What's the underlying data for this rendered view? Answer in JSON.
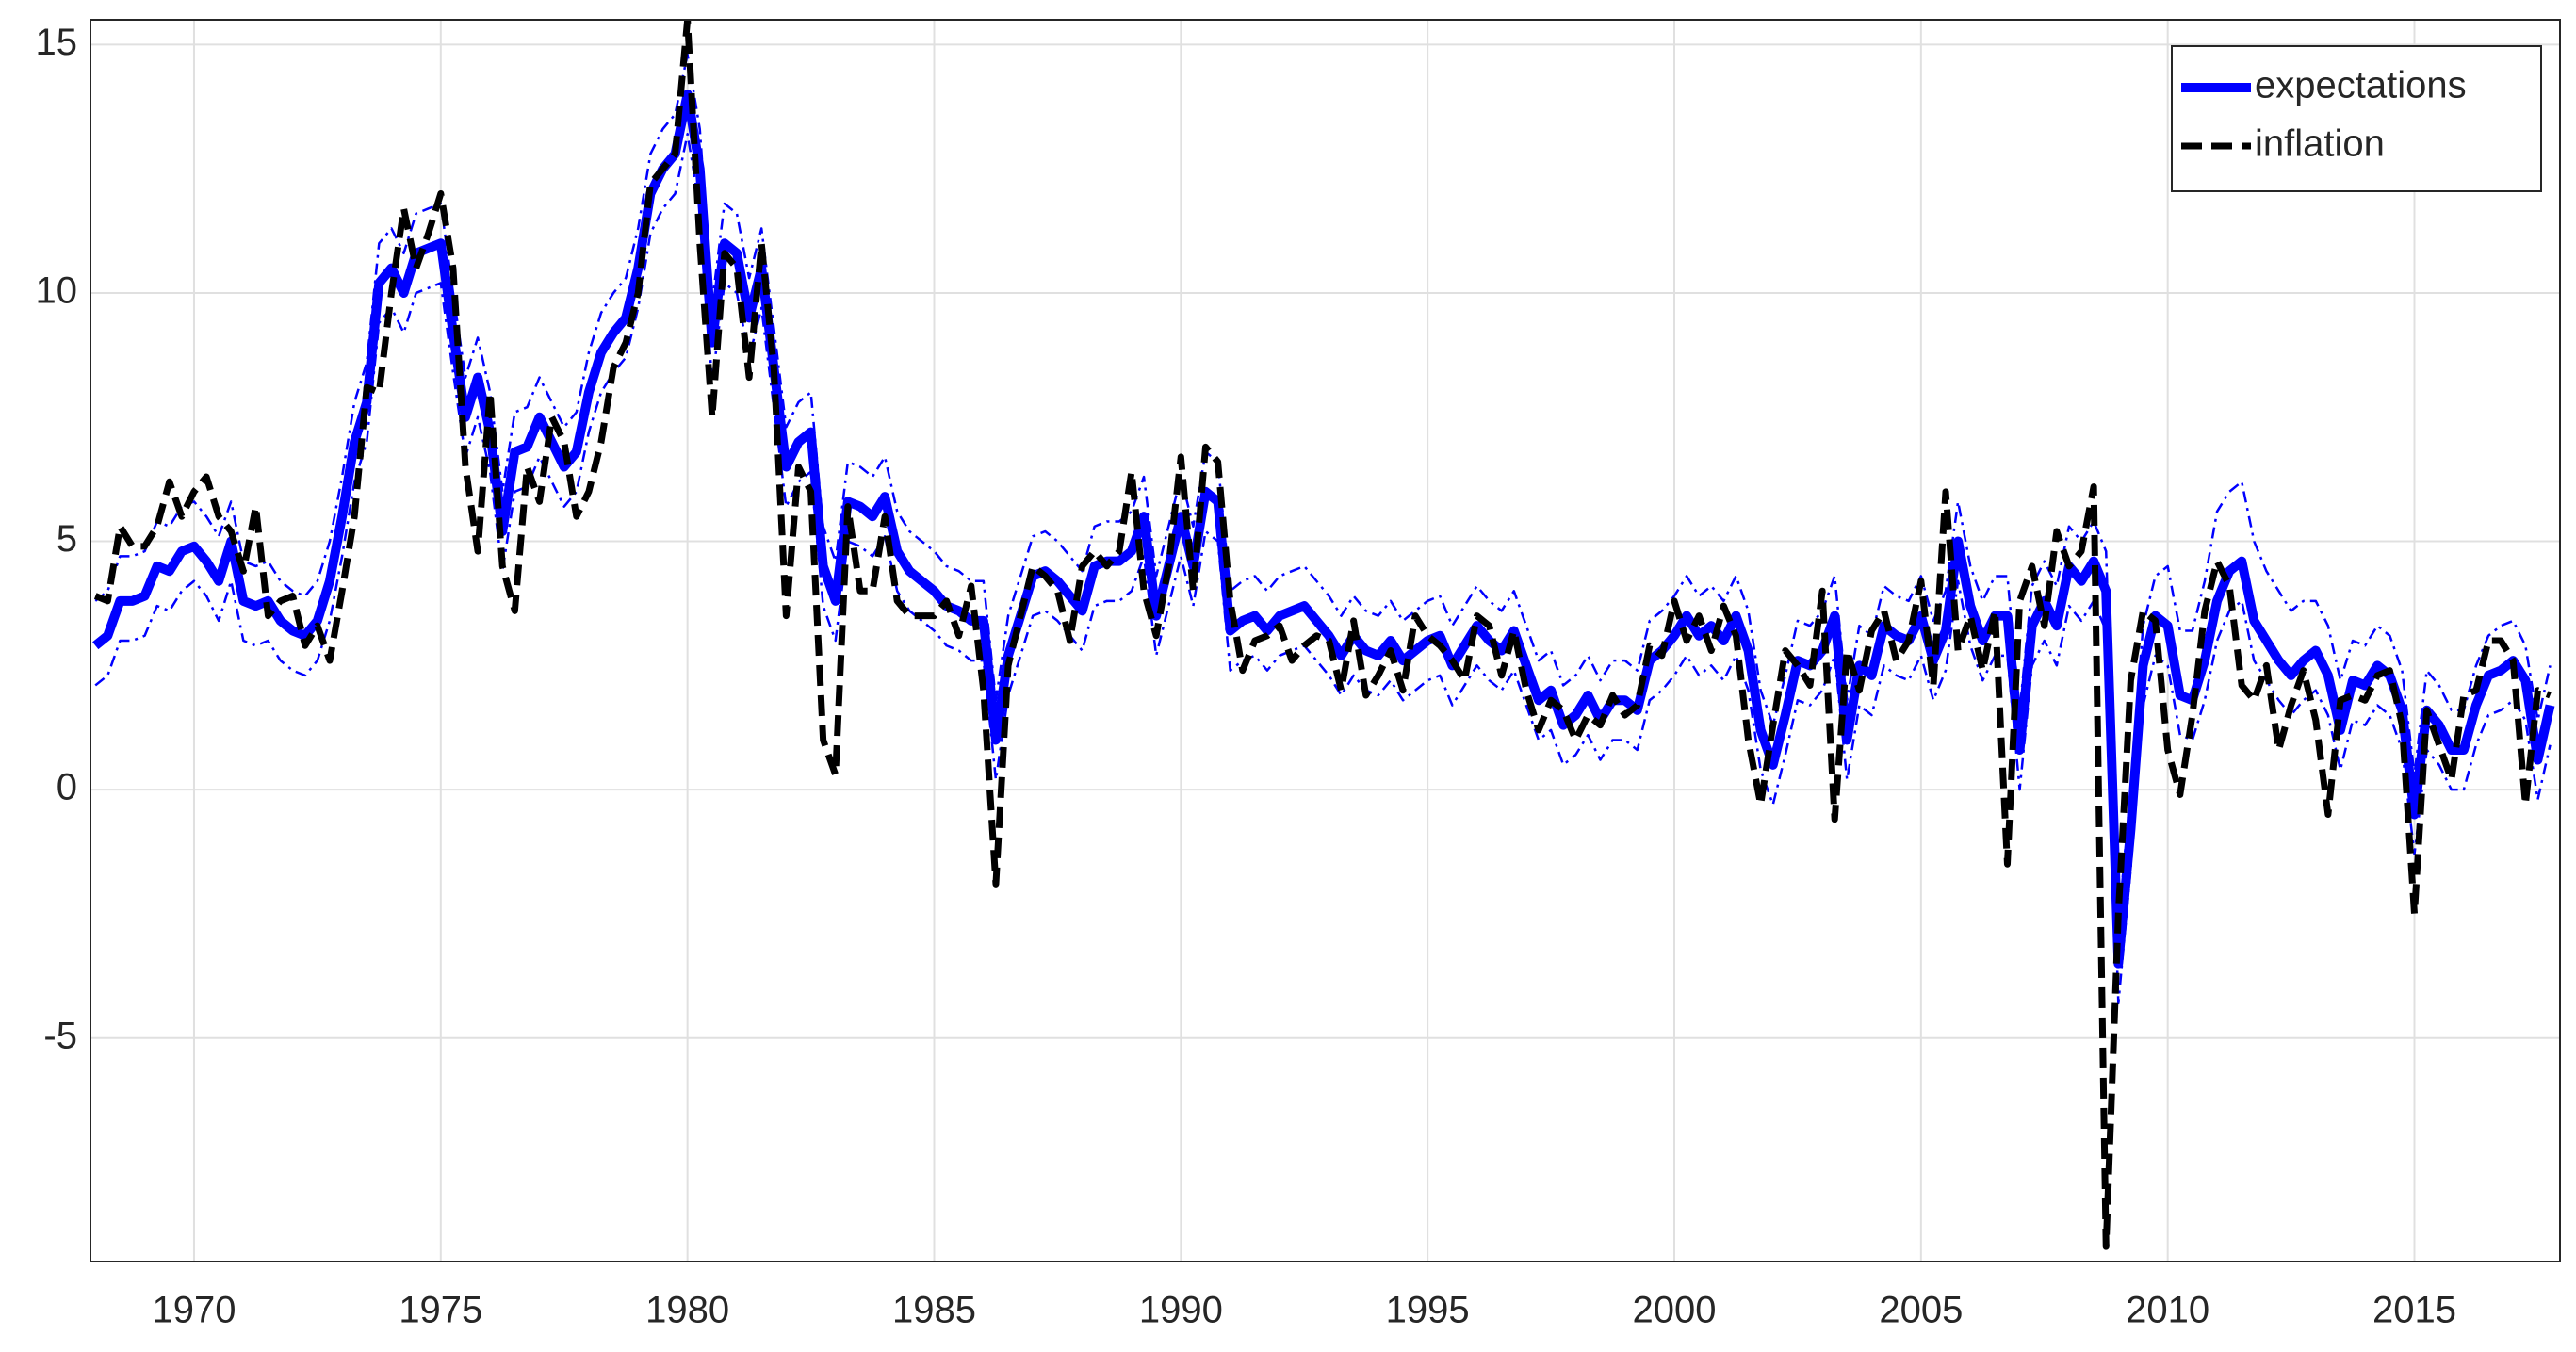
{
  "chart_data": {
    "type": "line",
    "x": [
      1968,
      1968.25,
      1968.5,
      1968.75,
      1969,
      1969.25,
      1969.5,
      1969.75,
      1970,
      1970.25,
      1970.5,
      1970.75,
      1971,
      1971.25,
      1971.5,
      1971.75,
      1972,
      1972.25,
      1972.5,
      1972.75,
      1973,
      1973.25,
      1973.5,
      1973.75,
      1974,
      1974.25,
      1974.5,
      1974.75,
      1975,
      1975.25,
      1975.5,
      1975.75,
      1976,
      1976.25,
      1976.5,
      1976.75,
      1977,
      1977.25,
      1977.5,
      1977.75,
      1978,
      1978.25,
      1978.5,
      1978.75,
      1979,
      1979.25,
      1979.5,
      1979.75,
      1980,
      1980.25,
      1980.5,
      1980.75,
      1981,
      1981.25,
      1981.5,
      1981.75,
      1982,
      1982.25,
      1982.5,
      1982.75,
      1983,
      1983.25,
      1983.5,
      1983.75,
      1984,
      1984.25,
      1984.5,
      1984.75,
      1985,
      1985.25,
      1985.5,
      1985.75,
      1986,
      1986.25,
      1986.5,
      1986.75,
      1987,
      1987.25,
      1987.5,
      1987.75,
      1988,
      1988.25,
      1988.5,
      1988.75,
      1989,
      1989.25,
      1989.5,
      1989.75,
      1990,
      1990.25,
      1990.5,
      1990.75,
      1991,
      1991.25,
      1991.5,
      1991.75,
      1992,
      1992.25,
      1992.5,
      1992.75,
      1993,
      1993.25,
      1993.5,
      1993.75,
      1994,
      1994.25,
      1994.5,
      1994.75,
      1995,
      1995.25,
      1995.5,
      1995.75,
      1996,
      1996.25,
      1996.5,
      1996.75,
      1997,
      1997.25,
      1997.5,
      1997.75,
      1998,
      1998.25,
      1998.5,
      1998.75,
      1999,
      1999.25,
      1999.5,
      1999.75,
      2000,
      2000.25,
      2000.5,
      2000.75,
      2001,
      2001.25,
      2001.5,
      2001.75,
      2002,
      2002.25,
      2002.5,
      2002.75,
      2003,
      2003.25,
      2003.5,
      2003.75,
      2004,
      2004.25,
      2004.5,
      2004.75,
      2005,
      2005.25,
      2005.5,
      2005.75,
      2006,
      2006.25,
      2006.5,
      2006.75,
      2007,
      2007.25,
      2007.5,
      2007.75,
      2008,
      2008.25,
      2008.5,
      2008.75,
      2009,
      2009.25,
      2009.5,
      2009.75,
      2010,
      2010.25,
      2010.5,
      2010.75,
      2011,
      2011.25,
      2011.5,
      2011.75,
      2012,
      2012.25,
      2012.5,
      2012.75,
      2013,
      2013.25,
      2013.5,
      2013.75,
      2014,
      2014.25,
      2014.5,
      2014.75,
      2015,
      2015.25,
      2015.5,
      2015.75,
      2016,
      2016.25,
      2016.5,
      2016.75,
      2017,
      2017.25,
      2017.5,
      2017.75
    ],
    "series": [
      {
        "color": "#0000ff",
        "style": "dashdot",
        "values": [
          3.8,
          4.0,
          4.7,
          4.7,
          4.8,
          5.4,
          5.3,
          5.7,
          5.8,
          5.5,
          5.1,
          5.8,
          4.6,
          4.5,
          4.6,
          4.2,
          4.0,
          3.9,
          4.2,
          5.0,
          6.3,
          7.8,
          8.6,
          11.0,
          11.3,
          10.8,
          11.6,
          11.7,
          11.8,
          10.0,
          8.3,
          9.1,
          8.0,
          6.0,
          7.6,
          7.7,
          8.3,
          7.8,
          7.3,
          7.6,
          8.8,
          9.6,
          10.0,
          10.3,
          11.3,
          12.8,
          13.3,
          13.6,
          14.8,
          13.3,
          9.8,
          11.8,
          11.6,
          10.3,
          11.3,
          9.3,
          7.3,
          7.8,
          8.0,
          5.3,
          4.6,
          6.6,
          6.5,
          6.3,
          6.7,
          5.6,
          5.2,
          5.0,
          4.8,
          4.5,
          4.4,
          4.2,
          4.2,
          1.8,
          3.5,
          4.3,
          5.1,
          5.2,
          5.0,
          4.7,
          4.4,
          5.3,
          5.4,
          5.4,
          5.6,
          6.3,
          4.3,
          5.3,
          6.3,
          5.3,
          6.8,
          6.6,
          4.0,
          4.2,
          4.3,
          4.0,
          4.3,
          4.4,
          4.5,
          4.2,
          3.9,
          3.5,
          3.9,
          3.6,
          3.5,
          3.8,
          3.4,
          3.6,
          3.8,
          3.9,
          3.3,
          3.7,
          4.1,
          3.8,
          3.6,
          4.0,
          3.3,
          2.6,
          2.8,
          2.1,
          2.3,
          2.7,
          2.2,
          2.6,
          2.6,
          2.4,
          3.4,
          3.6,
          3.9,
          4.3,
          3.9,
          4.1,
          3.8,
          4.3,
          3.6,
          2.0,
          1.3,
          2.3,
          3.4,
          3.3,
          3.6,
          4.3,
          1.8,
          3.3,
          3.1,
          4.1,
          3.9,
          3.8,
          4.3,
          3.4,
          4.0,
          5.8,
          4.5,
          3.8,
          4.3,
          4.3,
          1.6,
          4.1,
          4.6,
          4.1,
          5.3,
          5.0,
          5.4,
          4.8,
          -2.7,
          0.0,
          3.3,
          4.3,
          4.5,
          3.2,
          3.2,
          4.2,
          5.6,
          6.0,
          6.2,
          5.0,
          4.4,
          4.0,
          3.6,
          3.8,
          3.8,
          3.3,
          2.2,
          3.0,
          2.9,
          3.3,
          3.1,
          2.4,
          0.3,
          2.4,
          2.1,
          1.6,
          1.6,
          2.5,
          3.1,
          3.3,
          3.4,
          2.9,
          1.4,
          2.5
        ]
      },
      {
        "color": "#0000ff",
        "style": "dashdot",
        "values": [
          2.1,
          2.3,
          3.0,
          3.0,
          3.1,
          3.7,
          3.6,
          4.0,
          4.2,
          3.9,
          3.4,
          4.2,
          3.0,
          2.9,
          3.0,
          2.6,
          2.4,
          2.3,
          2.6,
          3.4,
          4.7,
          6.2,
          7.0,
          9.4,
          9.7,
          9.2,
          10.0,
          10.1,
          10.2,
          8.4,
          6.7,
          7.5,
          6.4,
          4.4,
          6.0,
          6.1,
          6.7,
          6.2,
          5.7,
          6.0,
          7.2,
          8.0,
          8.4,
          8.7,
          9.7,
          11.2,
          11.7,
          12.0,
          13.2,
          11.7,
          8.2,
          10.2,
          10.0,
          8.7,
          9.7,
          7.7,
          5.7,
          6.2,
          6.4,
          3.7,
          3.0,
          5.0,
          4.9,
          4.7,
          5.1,
          4.0,
          3.6,
          3.4,
          3.2,
          2.9,
          2.8,
          2.6,
          2.6,
          0.2,
          1.9,
          2.7,
          3.5,
          3.6,
          3.4,
          3.1,
          2.8,
          3.7,
          3.8,
          3.8,
          4.0,
          4.7,
          2.7,
          3.7,
          4.7,
          3.7,
          5.2,
          5.0,
          2.4,
          2.6,
          2.7,
          2.4,
          2.7,
          2.8,
          2.9,
          2.6,
          2.3,
          1.9,
          2.3,
          2.0,
          1.9,
          2.2,
          1.8,
          2.0,
          2.2,
          2.3,
          1.7,
          2.1,
          2.5,
          2.2,
          2.0,
          2.4,
          1.7,
          1.0,
          1.2,
          0.5,
          0.7,
          1.1,
          0.6,
          1.0,
          1.0,
          0.8,
          1.8,
          2.0,
          2.3,
          2.7,
          2.3,
          2.5,
          2.2,
          2.7,
          2.0,
          0.4,
          -0.3,
          0.7,
          1.8,
          1.7,
          2.0,
          2.7,
          0.2,
          1.7,
          1.5,
          2.5,
          2.3,
          2.2,
          2.7,
          1.8,
          2.4,
          4.2,
          2.9,
          2.2,
          2.7,
          2.7,
          0.0,
          2.5,
          3.0,
          2.5,
          3.7,
          3.4,
          3.8,
          3.2,
          -4.3,
          -1.6,
          1.7,
          2.7,
          2.5,
          1.1,
          1.0,
          1.8,
          3.0,
          3.6,
          3.8,
          2.6,
          2.2,
          1.8,
          1.5,
          1.8,
          2.0,
          1.5,
          0.4,
          1.4,
          1.3,
          1.7,
          1.5,
          0.8,
          -1.3,
          0.8,
          0.5,
          0.0,
          0.0,
          0.9,
          1.5,
          1.6,
          1.8,
          1.4,
          -0.2,
          0.9
        ]
      },
      {
        "name": "expectations",
        "color": "#0000ff",
        "style": "solid",
        "values": [
          2.9,
          3.1,
          3.8,
          3.8,
          3.9,
          4.5,
          4.4,
          4.8,
          4.9,
          4.6,
          4.2,
          5.0,
          3.8,
          3.7,
          3.8,
          3.4,
          3.2,
          3.1,
          3.4,
          4.2,
          5.5,
          7.0,
          7.8,
          10.2,
          10.5,
          10.0,
          10.8,
          10.9,
          11.0,
          9.2,
          7.5,
          8.3,
          7.2,
          5.2,
          6.8,
          6.9,
          7.5,
          7.0,
          6.5,
          6.8,
          8.0,
          8.8,
          9.2,
          9.5,
          10.5,
          12.0,
          12.5,
          12.8,
          14.0,
          12.5,
          9.0,
          11.0,
          10.8,
          9.5,
          10.5,
          8.5,
          6.5,
          7.0,
          7.2,
          4.5,
          3.8,
          5.8,
          5.7,
          5.5,
          5.9,
          4.8,
          4.4,
          4.2,
          4.0,
          3.7,
          3.6,
          3.4,
          3.4,
          1.0,
          2.7,
          3.5,
          4.3,
          4.4,
          4.2,
          3.9,
          3.6,
          4.5,
          4.6,
          4.6,
          4.8,
          5.5,
          3.5,
          4.5,
          5.5,
          4.5,
          6.0,
          5.8,
          3.2,
          3.4,
          3.5,
          3.2,
          3.5,
          3.6,
          3.7,
          3.4,
          3.1,
          2.7,
          3.1,
          2.8,
          2.7,
          3.0,
          2.6,
          2.8,
          3.0,
          3.1,
          2.5,
          2.9,
          3.3,
          3.0,
          2.8,
          3.2,
          2.5,
          1.8,
          2.0,
          1.3,
          1.5,
          1.9,
          1.4,
          1.8,
          1.8,
          1.6,
          2.6,
          2.8,
          3.1,
          3.5,
          3.1,
          3.3,
          3.0,
          3.5,
          2.8,
          1.2,
          0.5,
          1.5,
          2.6,
          2.5,
          2.8,
          3.5,
          1.0,
          2.5,
          2.3,
          3.3,
          3.1,
          3.0,
          3.5,
          2.6,
          3.2,
          5.0,
          3.7,
          3.0,
          3.5,
          3.5,
          0.8,
          3.3,
          3.8,
          3.3,
          4.5,
          4.2,
          4.6,
          4.0,
          -3.5,
          -0.8,
          2.5,
          3.5,
          3.3,
          1.9,
          1.8,
          2.6,
          3.8,
          4.4,
          4.6,
          3.4,
          3.0,
          2.6,
          2.3,
          2.6,
          2.8,
          2.3,
          1.2,
          2.2,
          2.1,
          2.5,
          2.3,
          1.6,
          -0.5,
          1.6,
          1.3,
          0.8,
          0.8,
          1.7,
          2.3,
          2.4,
          2.6,
          2.2,
          0.6,
          1.7
        ]
      },
      {
        "name": "inflation",
        "color": "#000000",
        "style": "dashed",
        "values": [
          3.9,
          3.8,
          5.3,
          4.9,
          4.9,
          5.3,
          6.2,
          5.5,
          6.0,
          6.3,
          5.5,
          5.2,
          4.4,
          5.7,
          3.5,
          3.8,
          3.9,
          2.9,
          3.3,
          2.6,
          4.0,
          5.5,
          8.1,
          8.0,
          10.0,
          11.7,
          10.5,
          11.2,
          12.0,
          10.5,
          6.5,
          4.8,
          8.0,
          4.5,
          3.6,
          6.5,
          5.8,
          7.5,
          7.0,
          5.5,
          6.0,
          7.0,
          8.5,
          9.0,
          10.0,
          12.2,
          12.5,
          12.8,
          15.5,
          11.0,
          7.5,
          10.8,
          10.5,
          8.3,
          11.0,
          8.5,
          3.5,
          6.5,
          6.0,
          1.0,
          0.3,
          5.7,
          4.0,
          4.0,
          5.5,
          3.8,
          3.5,
          3.5,
          3.5,
          3.8,
          3.1,
          4.1,
          2.0,
          -1.9,
          2.5,
          3.5,
          4.5,
          4.3,
          4.0,
          3.0,
          4.5,
          4.8,
          4.5,
          4.8,
          6.4,
          4.0,
          3.1,
          4.5,
          6.7,
          4.0,
          6.9,
          6.6,
          3.8,
          2.4,
          3.0,
          3.1,
          3.3,
          2.6,
          2.9,
          3.1,
          3.0,
          2.0,
          3.4,
          1.9,
          2.3,
          2.8,
          2.0,
          3.5,
          3.1,
          2.9,
          2.6,
          2.2,
          3.5,
          3.3,
          2.3,
          3.2,
          2.0,
          1.2,
          1.8,
          1.6,
          1.0,
          1.5,
          1.3,
          1.9,
          1.5,
          1.7,
          2.9,
          2.7,
          3.8,
          3.0,
          3.5,
          2.8,
          3.7,
          3.1,
          1.0,
          -0.3,
          1.3,
          2.8,
          2.5,
          2.1,
          4.0,
          -0.6,
          2.8,
          2.0,
          3.2,
          3.6,
          2.6,
          3.0,
          4.2,
          2.1,
          6.0,
          2.8,
          3.5,
          2.4,
          3.6,
          -1.5,
          3.8,
          4.5,
          3.3,
          5.2,
          4.5,
          4.8,
          6.1,
          -9.2,
          -2.5,
          2.2,
          3.6,
          3.4,
          0.8,
          -0.1,
          1.5,
          3.6,
          4.6,
          4.1,
          2.1,
          1.8,
          2.5,
          0.8,
          1.7,
          2.4,
          1.4,
          -0.5,
          1.8,
          1.9,
          1.8,
          2.3,
          2.4,
          1.3,
          -2.5,
          1.6,
          0.9,
          0.2,
          1.9,
          2.0,
          3.0,
          3.0,
          2.6,
          -0.3,
          2.0,
          1.9
        ]
      }
    ],
    "xlim": [
      1967.9,
      2017.95
    ],
    "ylim": [
      -9.5,
      15.5
    ],
    "xticks": [
      1970,
      1975,
      1980,
      1985,
      1990,
      1995,
      2000,
      2005,
      2010,
      2015
    ],
    "yticks": [
      -5,
      0,
      5,
      10,
      15
    ],
    "grid": true,
    "legend": "northeast"
  }
}
